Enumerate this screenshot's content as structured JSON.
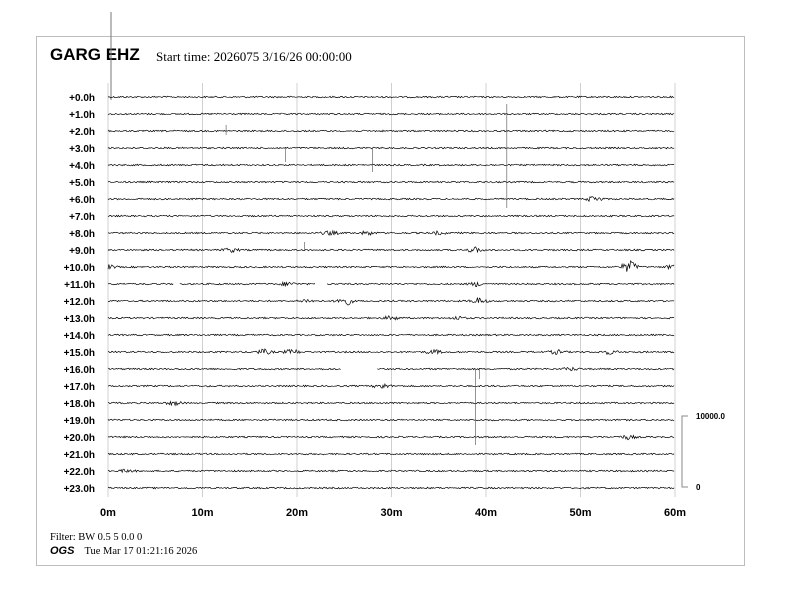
{
  "header": {
    "station": "GARG EHZ",
    "start_time": "Start time: 2026075  3/16/26 00:00:00"
  },
  "footer": {
    "filter": "Filter: BW 0.5 5 0.0 0",
    "agency": "OGS",
    "timestamp": "Tue Mar 17 01:21:16 2026"
  },
  "chart_data": {
    "type": "line",
    "title": "GARG EHZ",
    "row_labels": [
      "+0.0h",
      "+1.0h",
      "+2.0h",
      "+3.0h",
      "+4.0h",
      "+5.0h",
      "+6.0h",
      "+7.0h",
      "+8.0h",
      "+9.0h",
      "+10.0h",
      "+11.0h",
      "+12.0h",
      "+13.0h",
      "+14.0h",
      "+15.0h",
      "+16.0h",
      "+17.0h",
      "+18.0h",
      "+19.0h",
      "+20.0h",
      "+21.0h",
      "+22.0h",
      "+23.0h"
    ],
    "x_ticks": [
      "0m",
      "10m",
      "20m",
      "30m",
      "40m",
      "50m",
      "60m"
    ],
    "xlim": [
      0,
      60
    ],
    "grid": true,
    "scale": {
      "max_label": "10000.0",
      "min_label": "0",
      "max": 10000,
      "min": 0
    },
    "trace_color": "#000000",
    "grid_color": "#d0d0d0",
    "gaps": [
      {
        "row": 11,
        "from": 6.9,
        "to": 7.5
      },
      {
        "row": 11,
        "from": 22.0,
        "to": 23.2
      },
      {
        "row": 16,
        "from": 24.7,
        "to": 28.5
      }
    ],
    "events": [
      {
        "row": 6,
        "minute": 51.5,
        "amp": 3
      },
      {
        "row": 8,
        "minute": 23.5,
        "amp": 2
      },
      {
        "row": 8,
        "minute": 27.5,
        "amp": 2
      },
      {
        "row": 8,
        "minute": 35,
        "amp": 1.5
      },
      {
        "row": 9,
        "minute": 13,
        "amp": 2
      },
      {
        "row": 9,
        "minute": 38.8,
        "amp": 2.5
      },
      {
        "row": 10,
        "minute": 55.2,
        "amp": 6
      },
      {
        "row": 10,
        "minute": 59.8,
        "amp": 2
      },
      {
        "row": 10,
        "minute": 0,
        "amp": 2
      },
      {
        "row": 11,
        "minute": 19,
        "amp": 2
      },
      {
        "row": 11,
        "minute": 39,
        "amp": 2
      },
      {
        "row": 12,
        "minute": 25,
        "amp": 5
      },
      {
        "row": 12,
        "minute": 39.2,
        "amp": 3
      },
      {
        "row": 12,
        "minute": 21,
        "amp": 1.5
      },
      {
        "row": 13,
        "minute": 30,
        "amp": 2
      },
      {
        "row": 13,
        "minute": 37,
        "amp": 1.5
      },
      {
        "row": 15,
        "minute": 16.5,
        "amp": 2.5
      },
      {
        "row": 15,
        "minute": 19.5,
        "amp": 2.5
      },
      {
        "row": 15,
        "minute": 34.5,
        "amp": 2
      },
      {
        "row": 15,
        "minute": 47.5,
        "amp": 2
      },
      {
        "row": 15,
        "minute": 53,
        "amp": 2
      },
      {
        "row": 16,
        "minute": 49,
        "amp": 1.5
      },
      {
        "row": 17,
        "minute": 29,
        "amp": 2.5
      },
      {
        "row": 18,
        "minute": 7,
        "amp": 2
      },
      {
        "row": 20,
        "minute": 55,
        "amp": 2
      },
      {
        "row": 22,
        "minute": 2,
        "amp": 1.5
      }
    ],
    "spikes": [
      {
        "row": 2,
        "minute": 12.5,
        "up": 6,
        "down": 4
      },
      {
        "row": 3,
        "minute": 18.8,
        "up": 0,
        "down": 14
      },
      {
        "row": 3,
        "minute": 28,
        "up": 0,
        "down": 24
      },
      {
        "row": 5,
        "minute": 42.2,
        "up": 78,
        "down": 26
      },
      {
        "row": 9,
        "minute": 20.8,
        "up": 8,
        "down": 0
      },
      {
        "row": 16,
        "minute": 38.9,
        "up": 0,
        "down": 76
      },
      {
        "row": 16,
        "minute": 39.3,
        "up": 0,
        "down": 10
      }
    ]
  }
}
